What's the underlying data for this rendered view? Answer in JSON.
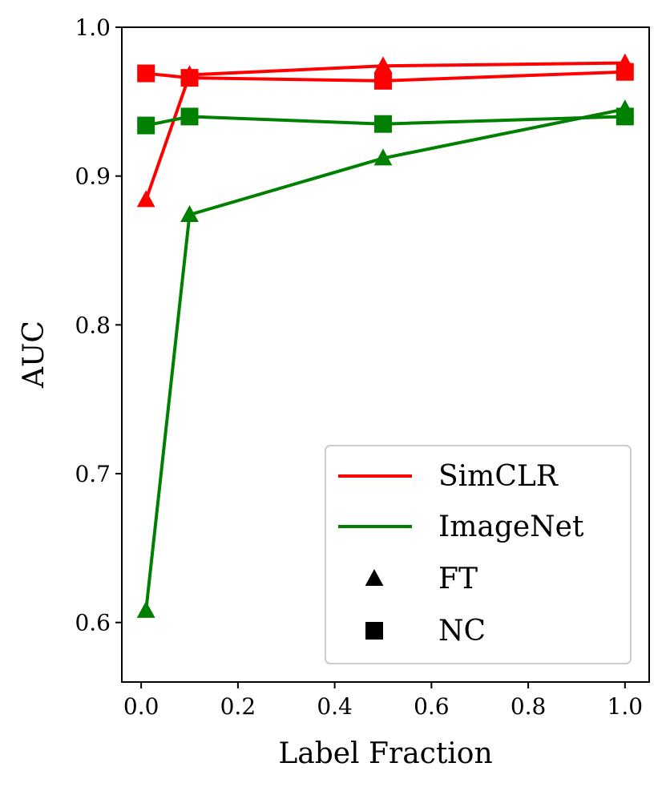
{
  "chart_data": {
    "type": "line",
    "title": "",
    "xlabel": "Label Fraction",
    "ylabel": "AUC",
    "xlim": [
      -0.04,
      1.05
    ],
    "ylim": [
      0.56,
      1.0
    ],
    "xticks": [
      0.0,
      0.2,
      0.4,
      0.6,
      0.8,
      1.0
    ],
    "xtick_labels": [
      "0.0",
      "0.2",
      "0.4",
      "0.6",
      "0.8",
      "1.0"
    ],
    "yticks": [
      0.6,
      0.7,
      0.8,
      0.9,
      1.0
    ],
    "ytick_labels": [
      "0.6",
      "0.7",
      "0.8",
      "0.9",
      "1.0"
    ],
    "grid": false,
    "series": [
      {
        "name": "SimCLR FT",
        "method": "SimCLR",
        "mode": "FT",
        "marker": "triangle",
        "color": "#ff0000",
        "x": [
          0.01,
          0.1,
          0.5,
          1.0
        ],
        "values": [
          0.884,
          0.968,
          0.974,
          0.976
        ]
      },
      {
        "name": "SimCLR NC",
        "method": "SimCLR",
        "mode": "NC",
        "marker": "square",
        "color": "#ff0000",
        "x": [
          0.01,
          0.1,
          0.5,
          1.0
        ],
        "values": [
          0.969,
          0.966,
          0.964,
          0.97
        ]
      },
      {
        "name": "ImageNet FT",
        "method": "ImageNet",
        "mode": "FT",
        "marker": "triangle",
        "color": "#008000",
        "x": [
          0.01,
          0.1,
          0.5,
          1.0
        ],
        "values": [
          0.608,
          0.874,
          0.912,
          0.945
        ]
      },
      {
        "name": "ImageNet NC",
        "method": "ImageNet",
        "mode": "NC",
        "marker": "square",
        "color": "#008000",
        "x": [
          0.01,
          0.1,
          0.5,
          1.0
        ],
        "values": [
          0.934,
          0.94,
          0.935,
          0.94
        ]
      }
    ],
    "legend": {
      "position": "lower-right",
      "entries": [
        {
          "label": "SimCLR",
          "kind": "line",
          "color": "#ff0000"
        },
        {
          "label": "ImageNet",
          "kind": "line",
          "color": "#008000"
        },
        {
          "label": "FT",
          "kind": "triangle",
          "color": "#000000"
        },
        {
          "label": "NC",
          "kind": "square",
          "color": "#000000"
        }
      ]
    }
  }
}
